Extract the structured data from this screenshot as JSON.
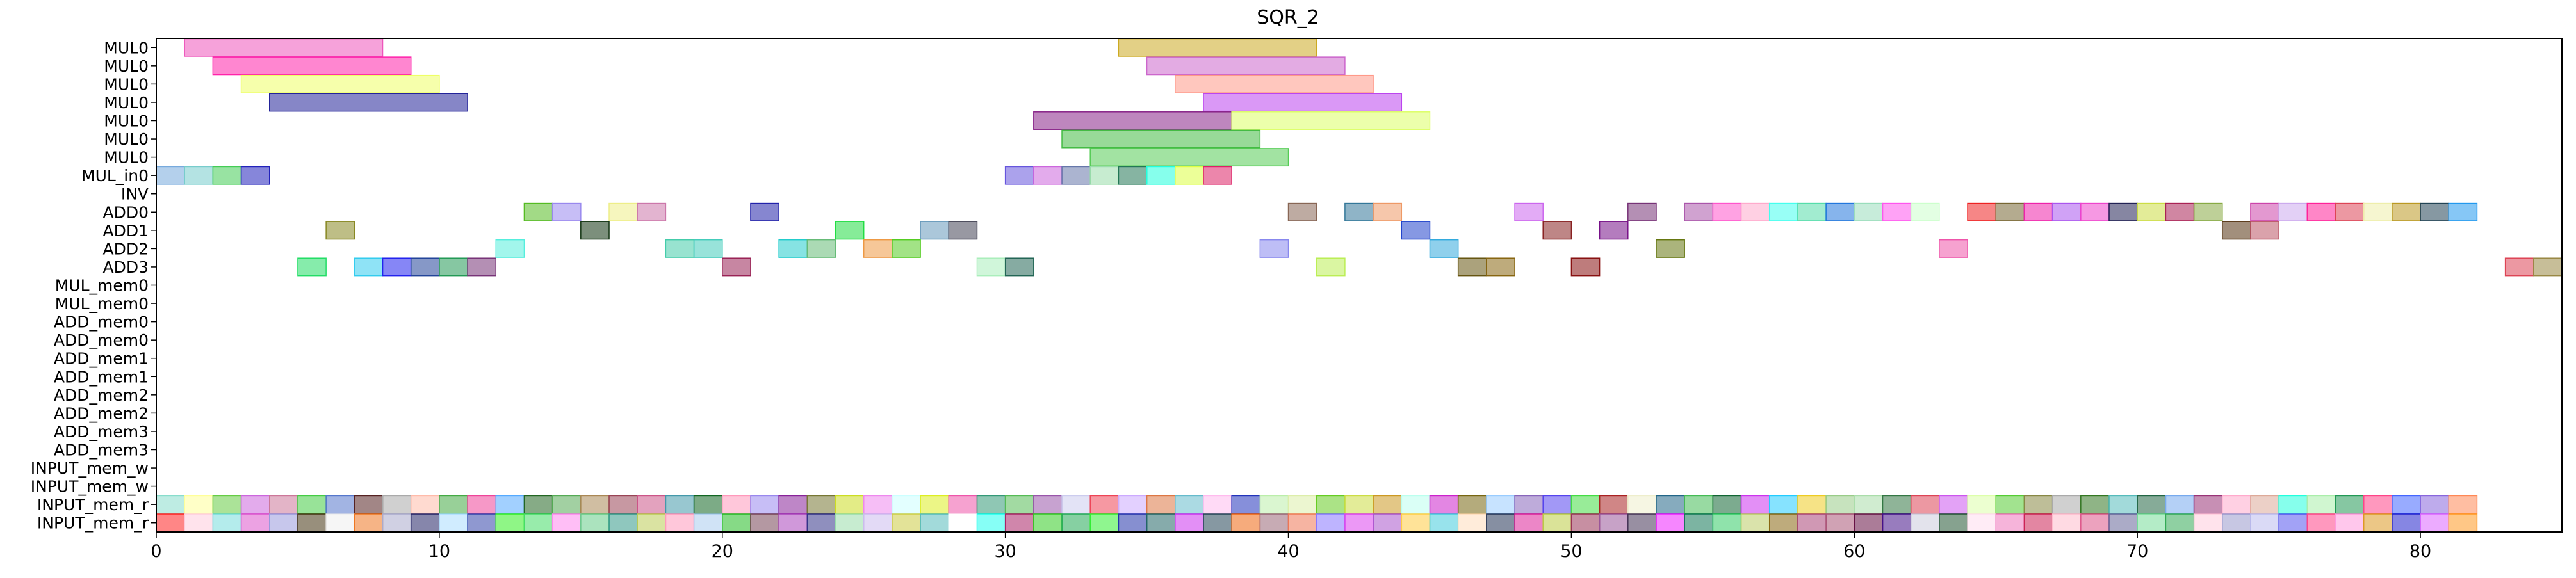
{
  "chart_data": {
    "type": "gantt",
    "title": "SQR_2",
    "xlabel": "",
    "ylabel": "",
    "xlim": [
      0,
      85
    ],
    "xticks": [
      0,
      10,
      20,
      30,
      40,
      50,
      60,
      70,
      80
    ],
    "grid": false,
    "legend": "none",
    "rows": [
      "MUL0",
      "MUL0",
      "MUL0",
      "MUL0",
      "MUL0",
      "MUL0",
      "MUL0",
      "MUL_in0",
      "INV",
      "ADD0",
      "ADD1",
      "ADD2",
      "ADD3",
      "MUL_mem0",
      "MUL_mem0",
      "ADD_mem0",
      "ADD_mem0",
      "ADD_mem1",
      "ADD_mem1",
      "ADD_mem2",
      "ADD_mem2",
      "ADD_mem3",
      "ADD_mem3",
      "INPUT_mem_w",
      "INPUT_mem_w",
      "INPUT_mem_r",
      "INPUT_mem_r"
    ],
    "tasks": [
      {
        "row": 0,
        "start": 1,
        "end": 8,
        "color": "#ee55bb"
      },
      {
        "row": 0,
        "start": 34,
        "end": 41,
        "color": "#ccaa22"
      },
      {
        "row": 1,
        "start": 2,
        "end": 9,
        "color": "#ff22aa"
      },
      {
        "row": 1,
        "start": 35,
        "end": 42,
        "color": "#cc66cc"
      },
      {
        "row": 2,
        "start": 3,
        "end": 10,
        "color": "#eeff66"
      },
      {
        "row": 2,
        "start": 36,
        "end": 43,
        "color": "#ff9988"
      },
      {
        "row": 3,
        "start": 4,
        "end": 11,
        "color": "#222299"
      },
      {
        "row": 3,
        "start": 37,
        "end": 44,
        "color": "#bb44ee"
      },
      {
        "row": 4,
        "start": 31,
        "end": 38,
        "color": "#882288"
      },
      {
        "row": 4,
        "start": 38,
        "end": 45,
        "color": "#ddff66"
      },
      {
        "row": 5,
        "start": 32,
        "end": 39,
        "color": "#44bb44"
      },
      {
        "row": 6,
        "start": 33,
        "end": 40,
        "color": "#55cc55"
      },
      {
        "row": 7,
        "start": 0,
        "end": 1,
        "color": "#77aadd"
      },
      {
        "row": 7,
        "start": 1,
        "end": 2,
        "color": "#77cccc"
      },
      {
        "row": 7,
        "start": 2,
        "end": 3,
        "color": "#44cc55"
      },
      {
        "row": 7,
        "start": 3,
        "end": 4,
        "color": "#2222bb"
      },
      {
        "row": 7,
        "start": 30,
        "end": 31,
        "color": "#6655dd"
      },
      {
        "row": 7,
        "start": 31,
        "end": 32,
        "color": "#cc66dd"
      },
      {
        "row": 7,
        "start": 32,
        "end": 33,
        "color": "#6677aa"
      },
      {
        "row": 7,
        "start": 33,
        "end": 34,
        "color": "#99ddaa"
      },
      {
        "row": 7,
        "start": 34,
        "end": 35,
        "color": "#227755"
      },
      {
        "row": 7,
        "start": 35,
        "end": 36,
        "color": "#22ffdd"
      },
      {
        "row": 7,
        "start": 36,
        "end": 37,
        "color": "#ddff44"
      },
      {
        "row": 7,
        "start": 37,
        "end": 38,
        "color": "#dd2266"
      },
      {
        "row": 9,
        "start": 13,
        "end": 14,
        "color": "#55bb22"
      },
      {
        "row": 9,
        "start": 14,
        "end": 15,
        "color": "#9988ee"
      },
      {
        "row": 9,
        "start": 16,
        "end": 17,
        "color": "#eeee88"
      },
      {
        "row": 9,
        "start": 17,
        "end": 18,
        "color": "#cc77aa"
      },
      {
        "row": 9,
        "start": 21,
        "end": 22,
        "color": "#2222aa"
      },
      {
        "row": 9,
        "start": 40,
        "end": 41,
        "color": "#886655"
      },
      {
        "row": 9,
        "start": 42,
        "end": 43,
        "color": "#337799"
      },
      {
        "row": 9,
        "start": 43,
        "end": 44,
        "color": "#ee9966"
      },
      {
        "row": 9,
        "start": 48,
        "end": 49,
        "color": "#cc66ee"
      },
      {
        "row": 9,
        "start": 52,
        "end": 53,
        "color": "#773377"
      },
      {
        "row": 9,
        "start": 54,
        "end": 55,
        "color": "#aa55aa"
      },
      {
        "row": 9,
        "start": 55,
        "end": 56,
        "color": "#ff55cc"
      },
      {
        "row": 9,
        "start": 56,
        "end": 57,
        "color": "#ffaacc"
      },
      {
        "row": 9,
        "start": 57,
        "end": 58,
        "color": "#44ffee"
      },
      {
        "row": 9,
        "start": 58,
        "end": 59,
        "color": "#55ddaa"
      },
      {
        "row": 9,
        "start": 59,
        "end": 60,
        "color": "#2277dd"
      },
      {
        "row": 9,
        "start": 60,
        "end": 61,
        "color": "#99ddbb"
      },
      {
        "row": 9,
        "start": 61,
        "end": 62,
        "color": "#ff55ee"
      },
      {
        "row": 9,
        "start": 62,
        "end": 63,
        "color": "#ccffcc"
      },
      {
        "row": 9,
        "start": 64,
        "end": 65,
        "color": "#ee2222"
      },
      {
        "row": 9,
        "start": 65,
        "end": 66,
        "color": "#776633"
      },
      {
        "row": 9,
        "start": 66,
        "end": 67,
        "color": "#ee22aa"
      },
      {
        "row": 9,
        "start": 67,
        "end": 68,
        "color": "#aa55ee"
      },
      {
        "row": 9,
        "start": 68,
        "end": 69,
        "color": "#ee44cc"
      },
      {
        "row": 9,
        "start": 69,
        "end": 70,
        "color": "#222255"
      },
      {
        "row": 9,
        "start": 70,
        "end": 71,
        "color": "#ccdd44"
      },
      {
        "row": 9,
        "start": 71,
        "end": 72,
        "color": "#aa2255"
      },
      {
        "row": 9,
        "start": 72,
        "end": 73,
        "color": "#88aa44"
      },
      {
        "row": 9,
        "start": 74,
        "end": 75,
        "color": "#cc44aa"
      },
      {
        "row": 9,
        "start": 75,
        "end": 76,
        "color": "#ccaaee"
      },
      {
        "row": 9,
        "start": 76,
        "end": 77,
        "color": "#ff2299"
      },
      {
        "row": 9,
        "start": 77,
        "end": 78,
        "color": "#dd4455"
      },
      {
        "row": 9,
        "start": 78,
        "end": 79,
        "color": "#eeeeaa"
      },
      {
        "row": 9,
        "start": 79,
        "end": 80,
        "color": "#bb9922"
      },
      {
        "row": 9,
        "start": 80,
        "end": 81,
        "color": "#224455"
      },
      {
        "row": 9,
        "start": 81,
        "end": 82,
        "color": "#2299ee"
      },
      {
        "row": 10,
        "start": 6,
        "end": 7,
        "color": "#888822"
      },
      {
        "row": 10,
        "start": 15,
        "end": 16,
        "color": "#113311"
      },
      {
        "row": 10,
        "start": 24,
        "end": 25,
        "color": "#22dd44"
      },
      {
        "row": 10,
        "start": 27,
        "end": 28,
        "color": "#6699bb"
      },
      {
        "row": 10,
        "start": 28,
        "end": 29,
        "color": "#444455"
      },
      {
        "row": 10,
        "start": 44,
        "end": 45,
        "color": "#2244cc"
      },
      {
        "row": 10,
        "start": 49,
        "end": 50,
        "color": "#882222"
      },
      {
        "row": 10,
        "start": 51,
        "end": 52,
        "color": "#771188"
      },
      {
        "row": 10,
        "start": 73,
        "end": 74,
        "color": "#553311"
      },
      {
        "row": 10,
        "start": 74,
        "end": 75,
        "color": "#bb5566"
      },
      {
        "row": 11,
        "start": 12,
        "end": 13,
        "color": "#55eedd"
      },
      {
        "row": 11,
        "start": 18,
        "end": 19,
        "color": "#44ccaa"
      },
      {
        "row": 11,
        "start": 19,
        "end": 20,
        "color": "#44ccbb"
      },
      {
        "row": 11,
        "start": 22,
        "end": 23,
        "color": "#22cccc"
      },
      {
        "row": 11,
        "start": 23,
        "end": 24,
        "color": "#66bb77"
      },
      {
        "row": 11,
        "start": 25,
        "end": 26,
        "color": "#ee9944"
      },
      {
        "row": 11,
        "start": 26,
        "end": 27,
        "color": "#55cc22"
      },
      {
        "row": 11,
        "start": 39,
        "end": 40,
        "color": "#8888ee"
      },
      {
        "row": 11,
        "start": 45,
        "end": 46,
        "color": "#33aadd"
      },
      {
        "row": 11,
        "start": 53,
        "end": 54,
        "color": "#667711"
      },
      {
        "row": 11,
        "start": 63,
        "end": 64,
        "color": "#ee55aa"
      },
      {
        "row": 12,
        "start": 5,
        "end": 6,
        "color": "#22dd66"
      },
      {
        "row": 12,
        "start": 7,
        "end": 8,
        "color": "#33ccee"
      },
      {
        "row": 12,
        "start": 8,
        "end": 9,
        "color": "#2222ee"
      },
      {
        "row": 12,
        "start": 9,
        "end": 10,
        "color": "#224499"
      },
      {
        "row": 12,
        "start": 10,
        "end": 11,
        "color": "#229955"
      },
      {
        "row": 12,
        "start": 11,
        "end": 12,
        "color": "#773377"
      },
      {
        "row": 12,
        "start": 20,
        "end": 21,
        "color": "#992255"
      },
      {
        "row": 12,
        "start": 29,
        "end": 30,
        "color": "#aaeebb"
      },
      {
        "row": 12,
        "start": 30,
        "end": 31,
        "color": "#226655"
      },
      {
        "row": 12,
        "start": 41,
        "end": 42,
        "color": "#bbee55"
      },
      {
        "row": 12,
        "start": 46,
        "end": 47,
        "color": "#665511"
      },
      {
        "row": 12,
        "start": 47,
        "end": 48,
        "color": "#886611"
      },
      {
        "row": 12,
        "start": 50,
        "end": 51,
        "color": "#881111"
      },
      {
        "row": 12,
        "start": 83,
        "end": 84,
        "color": "#dd4455"
      },
      {
        "row": 12,
        "start": 84,
        "end": 85,
        "color": "#998844"
      }
    ],
    "input_rows": [
      {
        "row": 25,
        "colors": [
          "#88ddcc",
          "#ffff99",
          "#66cc44",
          "#cc66dd",
          "#cc7799",
          "#44cc44",
          "#5577cc",
          "#552222",
          "#aaaaaa",
          "#ffbbaa",
          "#44aa44",
          "#ee4499",
          "#55aaff",
          "#226622",
          "#55aa55",
          "#aa8855",
          "#994455",
          "#cc5588",
          "#4499aa",
          "#116622",
          "#ff99bb",
          "#9988ee",
          "#882299",
          "#777733",
          "#ccdd22",
          "#ee88ee",
          "#ccffff",
          "#ddee22",
          "#ee55aa",
          "#339977",
          "#55bb55",
          "#9955aa",
          "#ccccee",
          "#ee4455",
          "#ccaaff",
          "#dd7744",
          "#66bbcc",
          "#ffbbee",
          "#2233bb",
          "#bbeeaa",
          "#ddeeaa",
          "#66cc22",
          "#ccdd44",
          "#cc9922",
          "#bbffee",
          "#cc22cc",
          "#776611",
          "#99ccff",
          "#8866bb",
          "#5544ee",
          "#44dd44",
          "#aa2222",
          "#eeeecc",
          "#226688",
          "#44bb55",
          "#116633",
          "#cc33ee",
          "#22ccff",
          "#eecc22",
          "#99cc88",
          "#aaddaa",
          "#337744",
          "#dd4455",
          "#cc55ee",
          "#ddffaa",
          "#55cc33",
          "#888844",
          "#aaaaaa",
          "#337722",
          "#55bbbb",
          "#226644",
          "#77aaee",
          "#993377",
          "#ffaacc",
          "#ddaa99",
          "#22ffdd",
          "#aaeeaa",
          "#229955",
          "#ff4488",
          "#4466ff",
          "#8866dd",
          "#ff8855"
        ]
      },
      {
        "row": 26,
        "colors": [
          "#ff2222",
          "#ffccdd",
          "#77dddd",
          "#dd55cc",
          "#9999dd",
          "#443311",
          "#eeeeee",
          "#ee7722",
          "#aaaacc",
          "#222266",
          "#aaddff",
          "#3344aa",
          "#33ee22",
          "#44dd66",
          "#ff88ee",
          "#66cc88",
          "#339988",
          "#bbcc55",
          "#ff99bb",
          "#aaccee",
          "#22bb22",
          "#774455",
          "#aa44bb",
          "#333388",
          "#99ddaa",
          "#ccbbee",
          "#cccc44",
          "#55bbbb",
          "#ffffff",
          "#22ffee",
          "#aa2266",
          "#33cc22",
          "#22aa55",
          "#33ee33",
          "#2233aa",
          "#226666",
          "#cc33ee",
          "#224455",
          "#ee6611",
          "#996677",
          "#ee7755",
          "#8877ff",
          "#dd44ee",
          "#aa55cc",
          "#ffcc44",
          "#44ccdd",
          "#ffddbb",
          "#223355",
          "#dd2299",
          "#bbcc44",
          "#993355",
          "#995599",
          "#443355",
          "#ee22ff",
          "#117755",
          "#33cc66",
          "#bbcc66",
          "#886611",
          "#aa4477",
          "#aa5577",
          "#661144",
          "#441188",
          "#ccccdd",
          "#225533",
          "#ffddee",
          "#ee77bb",
          "#cc2255",
          "#ffbbcc",
          "#dd5588",
          "#666699",
          "#77dd99",
          "#33aa55",
          "#ffccdd",
          "#9999cc",
          "#bbbbee",
          "#5555ee",
          "#ff4488",
          "#ff99dd",
          "#dd9922",
          "#2222cc",
          "#dd66ff",
          "#ff9922"
        ]
      }
    ]
  }
}
